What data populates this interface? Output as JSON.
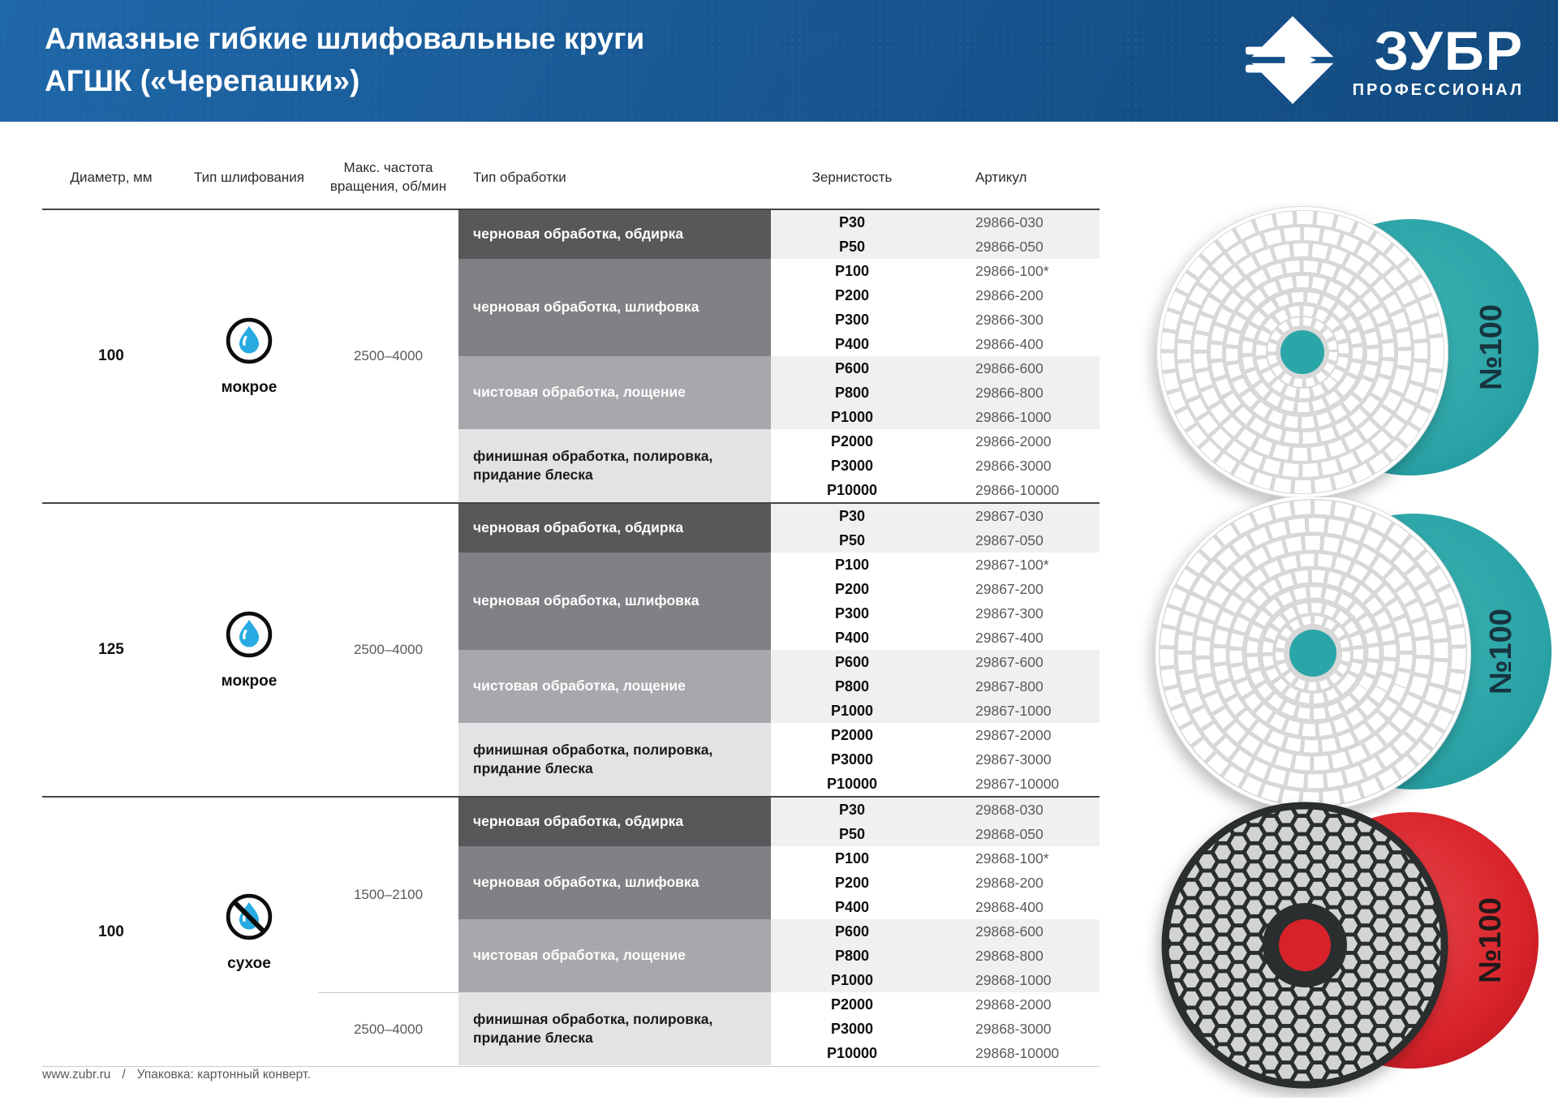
{
  "header": {
    "title_line1": "Алмазные гибкие шлифовальные круги",
    "title_line2": "АГШК («Черепашки»)",
    "brand": "ЗУБР",
    "brand_sub": "ПРОФЕССИОНАЛ"
  },
  "colors": {
    "header_blue": "#17558f",
    "block_dark": "#57585a",
    "block_medium": "#7f8184",
    "block_light": "#a6a8ab",
    "block_lightest": "#e2e3e4",
    "band_gray": "#f0f0f1",
    "sku_gray": "#58595b",
    "drop_cyan": "#29abe2",
    "disc_teal": "#2aa6a9",
    "disc_red": "#d8232a"
  },
  "table": {
    "columns": [
      "Диаметр, мм",
      "Тип шлифования",
      "Макс. частота вращения, об/мин",
      "Тип обработки",
      "Зернистость",
      "Артикул"
    ],
    "groups": [
      {
        "diameter": "100",
        "grinding": {
          "label": "мокрое",
          "icon": "wet-drop-icon"
        },
        "speed_sections": [
          {
            "label": "2500–4000",
            "rows": 12
          }
        ],
        "blocks": [
          {
            "label": "черновая обработка, обдирка",
            "shade": "dark",
            "band": "gray",
            "rows": [
              {
                "grit": "P30",
                "sku": "29866-030"
              },
              {
                "grit": "P50",
                "sku": "29866-050"
              }
            ]
          },
          {
            "label": "черновая обработка, шлифовка",
            "shade": "medium",
            "band": "white",
            "rows": [
              {
                "grit": "P100",
                "sku": "29866-100*"
              },
              {
                "grit": "P200",
                "sku": "29866-200"
              },
              {
                "grit": "P300",
                "sku": "29866-300"
              },
              {
                "grit": "P400",
                "sku": "29866-400"
              }
            ]
          },
          {
            "label": "чистовая обработка, лощение",
            "shade": "light",
            "band": "gray",
            "rows": [
              {
                "grit": "P600",
                "sku": "29866-600"
              },
              {
                "grit": "P800",
                "sku": "29866-800"
              },
              {
                "grit": "P1000",
                "sku": "29866-1000"
              }
            ]
          },
          {
            "label": "финишная обработка, полировка, придание блеска",
            "shade": "lightest",
            "band": "white",
            "rows": [
              {
                "grit": "P2000",
                "sku": "29866-2000"
              },
              {
                "grit": "P3000",
                "sku": "29866-3000"
              },
              {
                "grit": "P10000",
                "sku": "29866-10000"
              }
            ]
          }
        ]
      },
      {
        "diameter": "125",
        "grinding": {
          "label": "мокрое",
          "icon": "wet-drop-icon"
        },
        "speed_sections": [
          {
            "label": "2500–4000",
            "rows": 12
          }
        ],
        "blocks": [
          {
            "label": "черновая обработка, обдирка",
            "shade": "dark",
            "band": "gray",
            "rows": [
              {
                "grit": "P30",
                "sku": "29867-030"
              },
              {
                "grit": "P50",
                "sku": "29867-050"
              }
            ]
          },
          {
            "label": "черновая обработка, шлифовка",
            "shade": "medium",
            "band": "white",
            "rows": [
              {
                "grit": "P100",
                "sku": "29867-100*"
              },
              {
                "grit": "P200",
                "sku": "29867-200"
              },
              {
                "grit": "P300",
                "sku": "29867-300"
              },
              {
                "grit": "P400",
                "sku": "29867-400"
              }
            ]
          },
          {
            "label": "чистовая обработка, лощение",
            "shade": "light",
            "band": "gray",
            "rows": [
              {
                "grit": "P600",
                "sku": "29867-600"
              },
              {
                "grit": "P800",
                "sku": "29867-800"
              },
              {
                "grit": "P1000",
                "sku": "29867-1000"
              }
            ]
          },
          {
            "label": "финишная обработка, полировка, придание блеска",
            "shade": "lightest",
            "band": "white",
            "rows": [
              {
                "grit": "P2000",
                "sku": "29867-2000"
              },
              {
                "grit": "P3000",
                "sku": "29867-3000"
              },
              {
                "grit": "P10000",
                "sku": "29867-10000"
              }
            ]
          }
        ]
      },
      {
        "diameter": "100",
        "grinding": {
          "label": "сухое",
          "icon": "no-water-icon"
        },
        "speed_sections": [
          {
            "label": "1500–2100",
            "rows": 8
          },
          {
            "label": "2500–4000",
            "rows": 3
          }
        ],
        "blocks": [
          {
            "label": "черновая обработка, обдирка",
            "shade": "dark",
            "band": "gray",
            "rows": [
              {
                "grit": "P30",
                "sku": "29868-030"
              },
              {
                "grit": "P50",
                "sku": "29868-050"
              }
            ]
          },
          {
            "label": "черновая обработка, шлифовка",
            "shade": "medium",
            "band": "white",
            "rows": [
              {
                "grit": "P100",
                "sku": "29868-100*"
              },
              {
                "grit": "P200",
                "sku": "29868-200"
              },
              {
                "grit": "P400",
                "sku": "29868-400"
              }
            ]
          },
          {
            "label": "чистовая обработка, лощение",
            "shade": "light",
            "band": "gray",
            "rows": [
              {
                "grit": "P600",
                "sku": "29868-600"
              },
              {
                "grit": "P800",
                "sku": "29868-800"
              },
              {
                "grit": "P1000",
                "sku": "29868-1000"
              }
            ]
          },
          {
            "label": "финишная обработка, полировка, придание блеска",
            "shade": "lightest",
            "band": "white",
            "rows": [
              {
                "grit": "P2000",
                "sku": "29868-2000"
              },
              {
                "grit": "P3000",
                "sku": "29868-3000"
              },
              {
                "grit": "P10000",
                "sku": "29868-10000"
              }
            ]
          }
        ]
      }
    ]
  },
  "products": [
    {
      "label": "№100",
      "style": "white-mosaic-pad",
      "back_color": "#2aa6a9"
    },
    {
      "label": "№100",
      "style": "white-mosaic-pad",
      "back_color": "#2aa6a9"
    },
    {
      "label": "№100",
      "style": "black-hex-pad",
      "back_color": "#d8232a"
    }
  ],
  "footer": {
    "site": "www.zubr.ru",
    "separator": "/",
    "packaging": "Упаковка: картонный конверт."
  }
}
